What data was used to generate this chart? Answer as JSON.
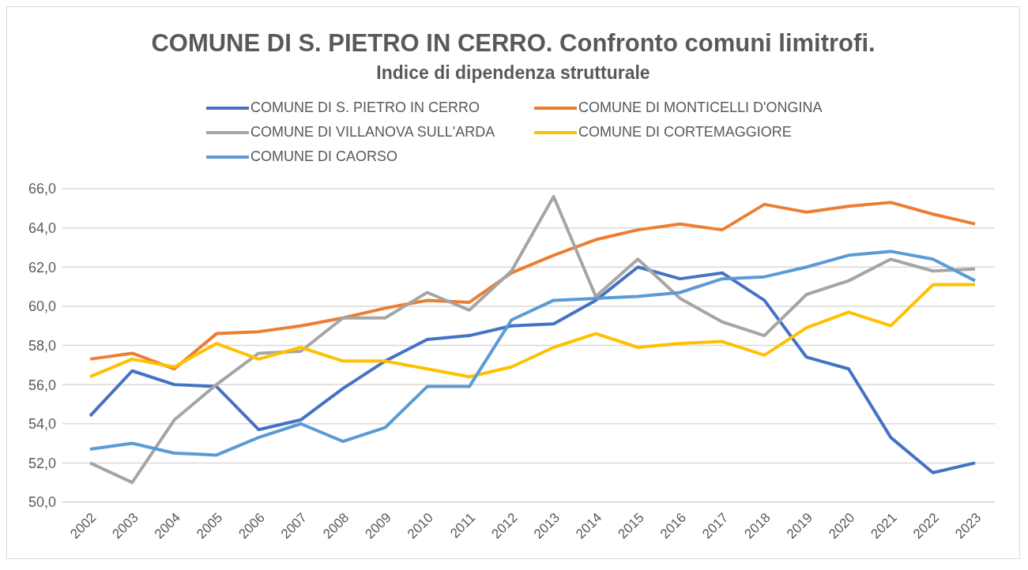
{
  "chart_data": {
    "type": "line",
    "title": "COMUNE DI S. PIETRO IN CERRO. Confronto comuni limitrofi.",
    "subtitle": "Indice di dipendenza strutturale",
    "categories": [
      "2002",
      "2003",
      "2004",
      "2005",
      "2006",
      "2007",
      "2008",
      "2009",
      "2010",
      "2011",
      "2012",
      "2013",
      "2014",
      "2015",
      "2016",
      "2017",
      "2018",
      "2019",
      "2020",
      "2021",
      "2022",
      "2023"
    ],
    "series": [
      {
        "name": "COMUNE DI S. PIETRO IN CERRO",
        "color": "#4472c4",
        "values": [
          54.4,
          56.7,
          56.0,
          55.9,
          53.7,
          54.2,
          55.8,
          57.2,
          58.3,
          58.5,
          59.0,
          59.1,
          60.3,
          62.0,
          61.4,
          61.7,
          60.3,
          57.4,
          56.8,
          53.3,
          51.5,
          52.0
        ]
      },
      {
        "name": "COMUNE DI MONTICELLI D'ONGINA",
        "color": "#ed7d31",
        "values": [
          57.3,
          57.6,
          56.8,
          58.6,
          58.7,
          59.0,
          59.4,
          59.9,
          60.3,
          60.2,
          61.7,
          62.6,
          63.4,
          63.9,
          64.2,
          63.9,
          65.2,
          64.8,
          65.1,
          65.3,
          64.7,
          64.2
        ]
      },
      {
        "name": "COMUNE DI VILLANOVA SULL'ARDA",
        "color": "#a5a5a5",
        "values": [
          52.0,
          51.0,
          54.2,
          56.0,
          57.6,
          57.7,
          59.4,
          59.4,
          60.7,
          59.8,
          61.8,
          65.6,
          60.5,
          62.4,
          60.4,
          59.2,
          58.5,
          60.6,
          61.3,
          62.4,
          61.8,
          61.9
        ]
      },
      {
        "name": "COMUNE DI CORTEMAGGIORE",
        "color": "#ffc000",
        "values": [
          56.4,
          57.3,
          56.9,
          58.1,
          57.3,
          57.9,
          57.2,
          57.2,
          56.8,
          56.4,
          56.9,
          57.9,
          58.6,
          57.9,
          58.1,
          58.2,
          57.5,
          58.9,
          59.7,
          59.0,
          61.1,
          61.1
        ]
      },
      {
        "name": "COMUNE DI CAORSO",
        "color": "#5b9bd5",
        "values": [
          52.7,
          53.0,
          52.5,
          52.4,
          53.3,
          54.0,
          53.1,
          53.8,
          55.9,
          55.9,
          59.3,
          60.3,
          60.4,
          60.5,
          60.7,
          61.4,
          61.5,
          62.0,
          62.6,
          62.8,
          62.4,
          61.3
        ]
      }
    ],
    "ylim": [
      50,
      66
    ],
    "yticks": [
      {
        "value": 50,
        "label": "50,0"
      },
      {
        "value": 52,
        "label": "52,0"
      },
      {
        "value": 54,
        "label": "54,0"
      },
      {
        "value": 56,
        "label": "56,0"
      },
      {
        "value": 58,
        "label": "58,0"
      },
      {
        "value": 60,
        "label": "60,0"
      },
      {
        "value": 62,
        "label": "62,0"
      },
      {
        "value": 64,
        "label": "64,0"
      },
      {
        "value": 66,
        "label": "66,0"
      }
    ],
    "grid": "y",
    "legend": "top",
    "marker": "none",
    "line_style": "solid"
  }
}
